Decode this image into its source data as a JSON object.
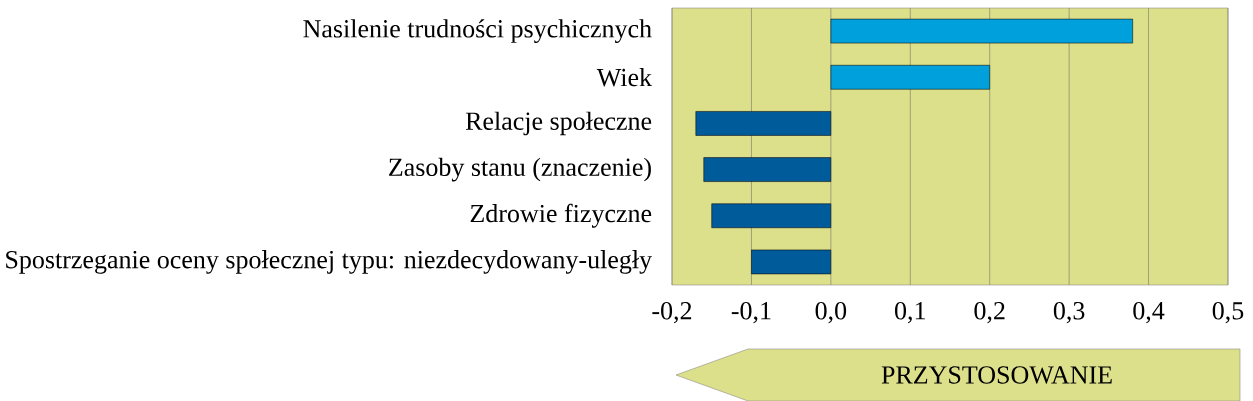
{
  "chart_data": {
    "type": "bar",
    "orientation": "horizontal",
    "categories": [
      "Nasilenie trudności psychicznych",
      "Wiek",
      "Relacje społeczne",
      "Zasoby stanu (znaczenie)",
      "Zdrowie fizyczne",
      "Spostrzeganie oceny społecznej typu: niezdecydowany-uległy"
    ],
    "values": [
      0.38,
      0.2,
      -0.17,
      -0.16,
      -0.15,
      -0.1
    ],
    "colors": [
      "#00a0dc",
      "#00a0dc",
      "#005b9a",
      "#005b9a",
      "#005b9a",
      "#005b9a"
    ],
    "xlim": [
      -0.2,
      0.5
    ],
    "xticks": [
      {
        "value": -0.2,
        "label": "-0,2"
      },
      {
        "value": -0.1,
        "label": "-0,1"
      },
      {
        "value": 0.0,
        "label": "0,0"
      },
      {
        "value": 0.1,
        "label": "0,1"
      },
      {
        "value": 0.2,
        "label": "0,2"
      },
      {
        "value": 0.3,
        "label": "0,3"
      },
      {
        "value": 0.4,
        "label": "0,4"
      },
      {
        "value": 0.5,
        "label": "0,5"
      }
    ],
    "grid": "x",
    "annotations": [
      "PRZYSTOSOWANIE"
    ]
  }
}
